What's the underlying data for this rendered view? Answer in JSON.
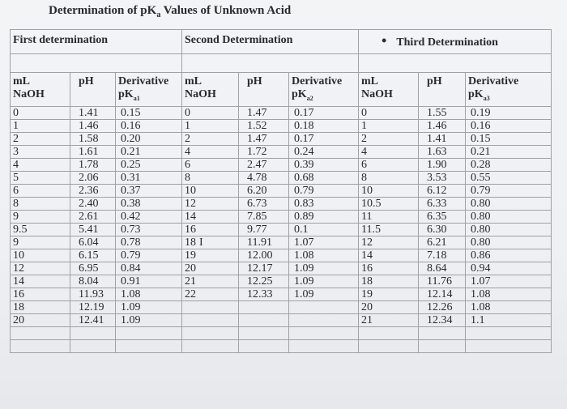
{
  "title": {
    "main": "Determination of pK",
    "sub": "a",
    "rest": " Values of Unknown Acid"
  },
  "sections": {
    "first": "First determination",
    "second": "Second Determination",
    "third_bullet": "•",
    "third": "Third Determination"
  },
  "columns": {
    "ml_line1": "mL",
    "ml_line2": "NaOH",
    "ph": "pH",
    "deriv": "Derivative",
    "pk": "pK",
    "pk1_sub": "a1",
    "pk2_sub": "a2",
    "pk3_sub": "a3"
  },
  "cursor_glyph": "I",
  "rows": [
    [
      "0",
      "1.41",
      "0.15",
      "0",
      "1.47",
      "0.17",
      "0",
      "1.55",
      "0.19"
    ],
    [
      "1",
      "1.46",
      "0.16",
      "1",
      "1.52",
      "0.18",
      "1",
      "1.46",
      "0.16"
    ],
    [
      "2",
      "1.58",
      "0.20",
      "2",
      "1.47",
      "0.17",
      "2",
      "1.41",
      "0.15"
    ],
    [
      "3",
      "1.61",
      "0.21",
      "4",
      "1.72",
      "0.24",
      "4",
      "1.63",
      "0.21"
    ],
    [
      "4",
      "1.78",
      "0.25",
      "6",
      "2.47",
      "0.39",
      "6",
      "1.90",
      "0.28"
    ],
    [
      "5",
      "2.06",
      "0.31",
      "8",
      "4.78",
      "0.68",
      "8",
      "3.53",
      "0.55"
    ],
    [
      "6",
      "2.36",
      "0.37",
      "10",
      "6.20",
      "0.79",
      "10",
      "6.12",
      "0.79"
    ],
    [
      "8",
      "2.40",
      "0.38",
      "12",
      "6.73",
      "0.83",
      "10.5",
      "6.33",
      "0.80"
    ],
    [
      "9",
      "2.61",
      "0.42",
      "14",
      "7.85",
      "0.89",
      "11",
      "6.35",
      "0.80"
    ],
    [
      "9.5",
      "5.41",
      "0.73",
      "16",
      "9.77",
      "0.1",
      "11.5",
      "6.30",
      "0.80"
    ],
    [
      "9",
      "6.04",
      "0.78",
      "18",
      "11.91",
      "1.07",
      "12",
      "6.21",
      "0.80"
    ],
    [
      "10",
      "6.15",
      "0.79",
      "19",
      "12.00",
      "1.08",
      "14",
      "7.18",
      "0.86"
    ],
    [
      "12",
      "6.95",
      "0.84",
      "20",
      "12.17",
      "1.09",
      "16",
      "8.64",
      "0.94"
    ],
    [
      "14",
      "8.04",
      "0.91",
      "21",
      "12.25",
      "1.09",
      "18",
      "11.76",
      "1.07"
    ],
    [
      "16",
      "11.93",
      "1.08",
      "22",
      "12.33",
      "1.09",
      "19",
      "12.14",
      "1.08"
    ],
    [
      "18",
      "12.19",
      "1.09",
      "",
      "",
      "",
      "20",
      "12.26",
      "1.08"
    ],
    [
      "20",
      "12.41",
      "1.09",
      "",
      "",
      "",
      "21",
      "12.34",
      "1.1"
    ],
    [
      "",
      "",
      "",
      "",
      "",
      "",
      "",
      "",
      ""
    ],
    [
      "",
      "",
      "",
      "",
      "",
      "",
      "",
      "",
      ""
    ]
  ]
}
